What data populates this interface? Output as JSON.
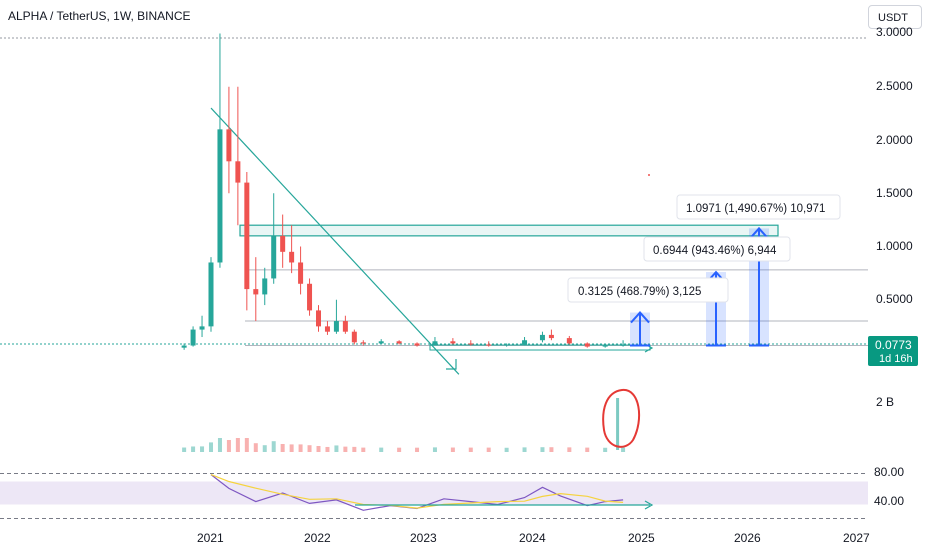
{
  "header": {
    "symbol_title": "ALPHA / TetherUS, 1W, BINANCE",
    "currency_button": "USDT"
  },
  "price_badge": {
    "value": "0.0773",
    "countdown": "1d 16h",
    "color": "#089981"
  },
  "volume_axis_label": "2 B",
  "colors": {
    "up": "#26a69a",
    "down": "#ef5350",
    "trend": "#26a69a",
    "measure": "#2962ff",
    "rsi_line": "#7e57c2",
    "rsi_ma": "#f5d33f",
    "rsi_band": "#ede7f6",
    "annotation_circle": "#e53935"
  },
  "chart_data": {
    "type": "candlestick",
    "symbol": "ALPHA / TetherUS",
    "interval": "1W",
    "exchange": "BINANCE",
    "x_axis": {
      "ticks": [
        "2021",
        "2022",
        "2023",
        "2024",
        "2025",
        "2026",
        "2027"
      ],
      "range": [
        "2020-09",
        "2027-01"
      ]
    },
    "price_axis": {
      "ticks": [
        "3.0000",
        "2.5000",
        "2.0000",
        "1.5000",
        "1.0000",
        "0.5000"
      ],
      "ylim": [
        0,
        3.0
      ]
    },
    "price_series": [
      {
        "date": "2020-10",
        "open": 0.05,
        "high": 0.09,
        "low": 0.03,
        "close": 0.07
      },
      {
        "date": "2020-11",
        "open": 0.07,
        "high": 0.25,
        "low": 0.06,
        "close": 0.22
      },
      {
        "date": "2020-12",
        "open": 0.22,
        "high": 0.35,
        "low": 0.15,
        "close": 0.25
      },
      {
        "date": "2021-01",
        "open": 0.25,
        "high": 0.9,
        "low": 0.2,
        "close": 0.85
      },
      {
        "date": "2021-02",
        "open": 0.85,
        "high": 3.0,
        "low": 0.8,
        "close": 2.1
      },
      {
        "date": "2021-03",
        "open": 2.1,
        "high": 2.5,
        "low": 1.5,
        "close": 1.8
      },
      {
        "date": "2021-04",
        "open": 1.8,
        "high": 2.5,
        "low": 1.2,
        "close": 1.6
      },
      {
        "date": "2021-05",
        "open": 1.6,
        "high": 1.7,
        "low": 0.4,
        "close": 0.6
      },
      {
        "date": "2021-06",
        "open": 0.6,
        "high": 0.9,
        "low": 0.3,
        "close": 0.55
      },
      {
        "date": "2021-07",
        "open": 0.55,
        "high": 0.8,
        "low": 0.45,
        "close": 0.7
      },
      {
        "date": "2021-08",
        "open": 0.7,
        "high": 1.5,
        "low": 0.65,
        "close": 1.1
      },
      {
        "date": "2021-09",
        "open": 1.1,
        "high": 1.3,
        "low": 0.8,
        "close": 0.95
      },
      {
        "date": "2021-10",
        "open": 0.95,
        "high": 1.2,
        "low": 0.75,
        "close": 0.85
      },
      {
        "date": "2021-11",
        "open": 0.85,
        "high": 1.0,
        "low": 0.55,
        "close": 0.65
      },
      {
        "date": "2021-12",
        "open": 0.65,
        "high": 0.7,
        "low": 0.35,
        "close": 0.4
      },
      {
        "date": "2022-01",
        "open": 0.4,
        "high": 0.45,
        "low": 0.2,
        "close": 0.25
      },
      {
        "date": "2022-02",
        "open": 0.25,
        "high": 0.3,
        "low": 0.17,
        "close": 0.2
      },
      {
        "date": "2022-03",
        "open": 0.2,
        "high": 0.5,
        "low": 0.18,
        "close": 0.3
      },
      {
        "date": "2022-04",
        "open": 0.3,
        "high": 0.35,
        "low": 0.18,
        "close": 0.2
      },
      {
        "date": "2022-05",
        "open": 0.2,
        "high": 0.22,
        "low": 0.08,
        "close": 0.1
      },
      {
        "date": "2022-06",
        "open": 0.1,
        "high": 0.12,
        "low": 0.07,
        "close": 0.09
      },
      {
        "date": "2022-08",
        "open": 0.09,
        "high": 0.13,
        "low": 0.08,
        "close": 0.11
      },
      {
        "date": "2022-10",
        "open": 0.11,
        "high": 0.12,
        "low": 0.08,
        "close": 0.09
      },
      {
        "date": "2022-12",
        "open": 0.09,
        "high": 0.1,
        "low": 0.06,
        "close": 0.07
      },
      {
        "date": "2023-02",
        "open": 0.07,
        "high": 0.15,
        "low": 0.07,
        "close": 0.11
      },
      {
        "date": "2023-04",
        "open": 0.11,
        "high": 0.14,
        "low": 0.08,
        "close": 0.09
      },
      {
        "date": "2023-06",
        "open": 0.09,
        "high": 0.12,
        "low": 0.07,
        "close": 0.08
      },
      {
        "date": "2023-08",
        "open": 0.08,
        "high": 0.11,
        "low": 0.06,
        "close": 0.07
      },
      {
        "date": "2023-10",
        "open": 0.07,
        "high": 0.09,
        "low": 0.06,
        "close": 0.08
      },
      {
        "date": "2023-12",
        "open": 0.08,
        "high": 0.15,
        "low": 0.07,
        "close": 0.12
      },
      {
        "date": "2024-02",
        "open": 0.12,
        "high": 0.2,
        "low": 0.1,
        "close": 0.17
      },
      {
        "date": "2024-03",
        "open": 0.17,
        "high": 0.22,
        "low": 0.12,
        "close": 0.14
      },
      {
        "date": "2024-05",
        "open": 0.14,
        "high": 0.16,
        "low": 0.08,
        "close": 0.09
      },
      {
        "date": "2024-07",
        "open": 0.09,
        "high": 0.1,
        "low": 0.05,
        "close": 0.06
      },
      {
        "date": "2024-09",
        "open": 0.06,
        "high": 0.08,
        "low": 0.05,
        "close": 0.07
      },
      {
        "date": "2024-11",
        "open": 0.07,
        "high": 0.12,
        "low": 0.06,
        "close": 0.0773
      }
    ],
    "volume": {
      "axis_label": "2 B",
      "highlighted_spike": "2024-11"
    },
    "rsi": {
      "ticks": [
        "80.00",
        "40.00"
      ],
      "levels": [
        70,
        30
      ],
      "values": [
        {
          "date": "2021-01",
          "value": 92
        },
        {
          "date": "2021-03",
          "value": 68
        },
        {
          "date": "2021-06",
          "value": 45
        },
        {
          "date": "2021-09",
          "value": 60
        },
        {
          "date": "2021-12",
          "value": 42
        },
        {
          "date": "2022-03",
          "value": 48
        },
        {
          "date": "2022-06",
          "value": 30
        },
        {
          "date": "2022-09",
          "value": 38
        },
        {
          "date": "2022-12",
          "value": 33
        },
        {
          "date": "2023-03",
          "value": 50
        },
        {
          "date": "2023-06",
          "value": 45
        },
        {
          "date": "2023-09",
          "value": 40
        },
        {
          "date": "2023-12",
          "value": 52
        },
        {
          "date": "2024-02",
          "value": 70
        },
        {
          "date": "2024-04",
          "value": 55
        },
        {
          "date": "2024-07",
          "value": 38
        },
        {
          "date": "2024-09",
          "value": 45
        },
        {
          "date": "2024-11",
          "value": 48
        }
      ]
    },
    "drawings": {
      "horizontal_zones": [
        1.1,
        1.2
      ],
      "horizontal_lines": [
        0.78,
        0.3,
        0.07
      ],
      "trendline": {
        "from": [
          "2021-01",
          2.3
        ],
        "to": [
          "2023-04",
          -0.2
        ]
      },
      "measurements": [
        {
          "label": "0.3125 (468.79%) 3,125",
          "from": 0.07,
          "to": 0.38
        },
        {
          "label": "0.6944 (943.46%) 6,944",
          "from": 0.07,
          "to": 0.76
        },
        {
          "label": "1.0971 (1,490.67%) 10,971",
          "from": 0.07,
          "to": 1.17
        }
      ]
    }
  }
}
